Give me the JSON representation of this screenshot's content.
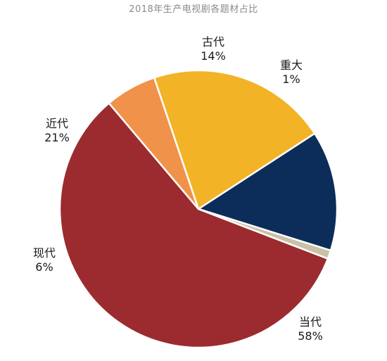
{
  "chart_data": {
    "type": "pie",
    "title": "2018年生产电视剧各题材占比",
    "slices": [
      {
        "label": "当代",
        "percent_label": "58%",
        "value": 58,
        "color": "#9b2b2f"
      },
      {
        "label": "现代",
        "percent_label": "6%",
        "value": 6,
        "color": "#f0924a"
      },
      {
        "label": "近代",
        "percent_label": "21%",
        "value": 21,
        "color": "#f2b327"
      },
      {
        "label": "古代",
        "percent_label": "14%",
        "value": 14,
        "color": "#0c2d5a"
      },
      {
        "label": "重大",
        "percent_label": "1%",
        "value": 1,
        "color": "#c9c2a6"
      }
    ],
    "legend": "none"
  }
}
